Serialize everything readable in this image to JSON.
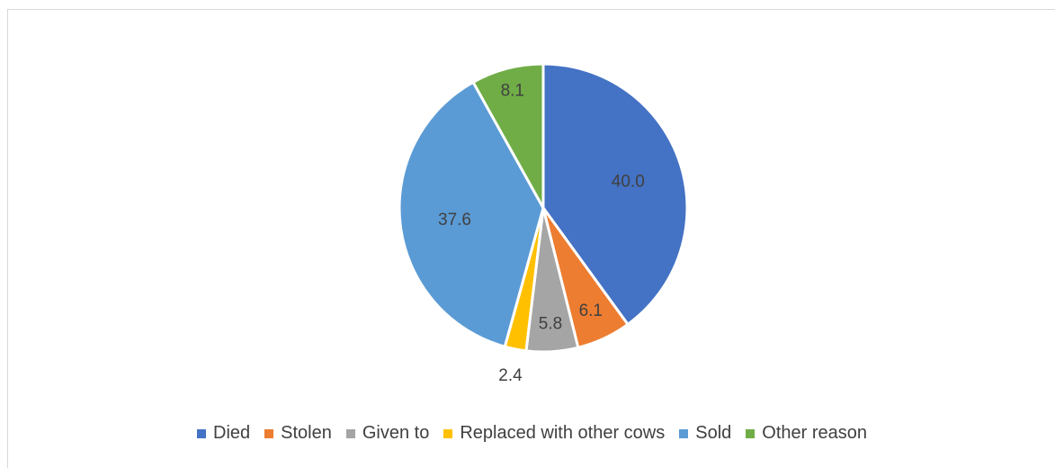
{
  "chart_data": {
    "type": "pie",
    "title": "",
    "categories": [
      "Died",
      "Stolen",
      "Given to",
      "Replaced with other cows",
      "Sold",
      "Other reason"
    ],
    "values": [
      40.0,
      6.1,
      5.8,
      2.4,
      37.6,
      8.1
    ],
    "value_labels": [
      "40.0",
      "6.1",
      "5.8",
      "2.4",
      "37.6",
      "8.1"
    ],
    "colors": [
      "#4472C4",
      "#ED7D31",
      "#A5A5A5",
      "#FFC000",
      "#5B9BD5",
      "#70AD47"
    ],
    "legend_position": "bottom",
    "start_angle": "top, clockwise"
  }
}
